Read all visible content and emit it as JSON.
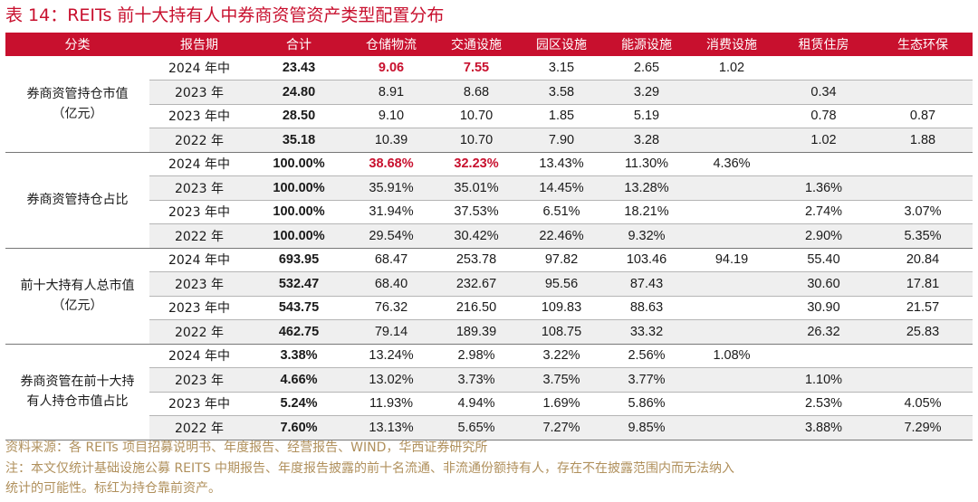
{
  "title": "表 14：REITs 前十大持有人中券商资管资产类型配置分布",
  "columns": [
    "分类",
    "报告期",
    "合计",
    "仓储物流",
    "交通设施",
    "园区设施",
    "能源设施",
    "消费设施",
    "租赁住房",
    "生态环保"
  ],
  "groups": [
    {
      "label": "券商资管持仓市值\n（亿元）",
      "rows": [
        {
          "period": "2024 年中",
          "values": [
            "23.43",
            "9.06",
            "7.55",
            "3.15",
            "2.65",
            "1.02",
            "",
            ""
          ]
        },
        {
          "period": "2023 年",
          "values": [
            "24.80",
            "8.91",
            "8.68",
            "3.58",
            "3.29",
            "",
            "0.34",
            ""
          ]
        },
        {
          "period": "2023 年中",
          "values": [
            "28.50",
            "9.10",
            "10.70",
            "1.85",
            "5.19",
            "",
            "0.78",
            "0.87"
          ]
        },
        {
          "period": "2022 年",
          "values": [
            "35.18",
            "10.39",
            "10.70",
            "7.90",
            "3.28",
            "",
            "1.02",
            "1.88"
          ]
        }
      ]
    },
    {
      "label": "券商资管持仓占比",
      "rows": [
        {
          "period": "2024 年中",
          "values": [
            "100.00%",
            "38.68%",
            "32.23%",
            "13.43%",
            "11.30%",
            "4.36%",
            "",
            ""
          ]
        },
        {
          "period": "2023 年",
          "values": [
            "100.00%",
            "35.91%",
            "35.01%",
            "14.45%",
            "13.28%",
            "",
            "1.36%",
            ""
          ]
        },
        {
          "period": "2023 年中",
          "values": [
            "100.00%",
            "31.94%",
            "37.53%",
            "6.51%",
            "18.21%",
            "",
            "2.74%",
            "3.07%"
          ]
        },
        {
          "period": "2022 年",
          "values": [
            "100.00%",
            "29.54%",
            "30.42%",
            "22.46%",
            "9.32%",
            "",
            "2.90%",
            "5.35%"
          ]
        }
      ]
    },
    {
      "label": "前十大持有人总市值\n（亿元）",
      "rows": [
        {
          "period": "2024 年中",
          "values": [
            "693.95",
            "68.47",
            "253.78",
            "97.82",
            "103.46",
            "94.19",
            "55.40",
            "20.84"
          ]
        },
        {
          "period": "2023 年",
          "values": [
            "532.47",
            "68.40",
            "232.67",
            "95.56",
            "87.43",
            "",
            "30.60",
            "17.81"
          ]
        },
        {
          "period": "2023 年中",
          "values": [
            "543.75",
            "76.32",
            "216.50",
            "109.83",
            "88.63",
            "",
            "30.90",
            "21.57"
          ]
        },
        {
          "period": "2022 年",
          "values": [
            "462.75",
            "79.14",
            "189.39",
            "108.75",
            "33.32",
            "",
            "26.32",
            "25.83"
          ]
        }
      ]
    },
    {
      "label": "券商资管在前十大持\n有人持仓市值占比",
      "rows": [
        {
          "period": "2024 年中",
          "values": [
            "3.38%",
            "13.24%",
            "2.98%",
            "3.22%",
            "2.56%",
            "1.08%",
            "",
            ""
          ]
        },
        {
          "period": "2023 年",
          "values": [
            "4.66%",
            "13.02%",
            "3.73%",
            "3.75%",
            "3.77%",
            "",
            "1.10%",
            ""
          ]
        },
        {
          "period": "2023 年中",
          "values": [
            "5.24%",
            "11.93%",
            "4.94%",
            "1.69%",
            "5.86%",
            "",
            "2.53%",
            "4.05%"
          ]
        },
        {
          "period": "2022 年",
          "values": [
            "7.60%",
            "13.13%",
            "5.65%",
            "7.27%",
            "9.85%",
            "",
            "3.88%",
            "7.29%"
          ]
        }
      ]
    }
  ],
  "highlighted": [
    {
      "group": 0,
      "row": 0,
      "col": 1
    },
    {
      "group": 0,
      "row": 0,
      "col": 2
    },
    {
      "group": 1,
      "row": 0,
      "col": 1
    },
    {
      "group": 1,
      "row": 0,
      "col": 2
    }
  ],
  "colors": {
    "accent": "#c8102e",
    "stripe": "#efefef",
    "note": "#b0905c"
  },
  "notes": [
    "资料来源：各 REITs 项目招募说明书、年度报告、经营报告、WIND，华西证券研究所",
    "注：本文仅统计基础设施公募 REITS 中期报告、年度报告披露的前十名流通、非流通份额持有人，存在不在披露范围内而无法纳入",
    "统计的可能性。标红为持仓靠前资产。"
  ]
}
